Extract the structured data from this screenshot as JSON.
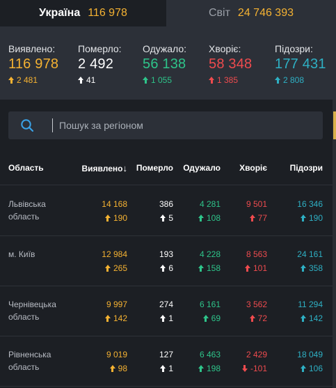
{
  "tabs": [
    {
      "name": "Україна",
      "count": "116 978",
      "active": true
    },
    {
      "name": "Світ",
      "count": "24 746 393",
      "active": false
    }
  ],
  "summary": {
    "confirmed": {
      "label": "Виявлено:",
      "value": "116 978",
      "delta": "2 481"
    },
    "deaths": {
      "label": "Померло:",
      "value": "2 492",
      "delta": "41"
    },
    "recovered": {
      "label": "Одужало:",
      "value": "56 138",
      "delta": "1 055"
    },
    "sick": {
      "label": "Хворіє:",
      "value": "58 348",
      "delta": "1 385"
    },
    "suspected": {
      "label": "Підозри:",
      "value": "177 431",
      "delta": "2 808"
    }
  },
  "search": {
    "placeholder": "Пошук за регіоном"
  },
  "table": {
    "headers": {
      "region": "Область",
      "confirmed": "Виявлено",
      "confirmed_sort": "↓",
      "deaths": "Померло",
      "recovered": "Одужало",
      "sick": "Хворіє",
      "suspected": "Підозри"
    },
    "rows": [
      {
        "region": "Львівська область",
        "confirmed": "14 168",
        "confirmed_d": "190",
        "deaths": "386",
        "deaths_d": "5",
        "recovered": "4 281",
        "recovered_d": "108",
        "sick": "9 501",
        "sick_d": "77",
        "suspected": "16 346",
        "suspected_d": "190"
      },
      {
        "region": "м. Київ",
        "confirmed": "12 984",
        "confirmed_d": "265",
        "deaths": "193",
        "deaths_d": "6",
        "recovered": "4 228",
        "recovered_d": "158",
        "sick": "8 563",
        "sick_d": "101",
        "suspected": "24 161",
        "suspected_d": "358"
      },
      {
        "region": "Чернівецька область",
        "confirmed": "9 997",
        "confirmed_d": "142",
        "deaths": "274",
        "deaths_d": "1",
        "recovered": "6 161",
        "recovered_d": "69",
        "sick": "3 562",
        "sick_d": "72",
        "suspected": "11 294",
        "suspected_d": "142"
      },
      {
        "region": "Рівненська область",
        "confirmed": "9 019",
        "confirmed_d": "98",
        "deaths": "127",
        "deaths_d": "1",
        "recovered": "6 463",
        "recovered_d": "198",
        "sick": "2 429",
        "sick_d": "-101",
        "suspected": "18 049",
        "suspected_d": "106"
      }
    ]
  },
  "colors": {
    "confirmed": "#f5b232",
    "deaths": "#ffffff",
    "recovered": "#2ec48a",
    "sick": "#ee4b4e",
    "suspected": "#2eb0c4",
    "panel": "#2c3038",
    "background": "#1c1f24"
  }
}
